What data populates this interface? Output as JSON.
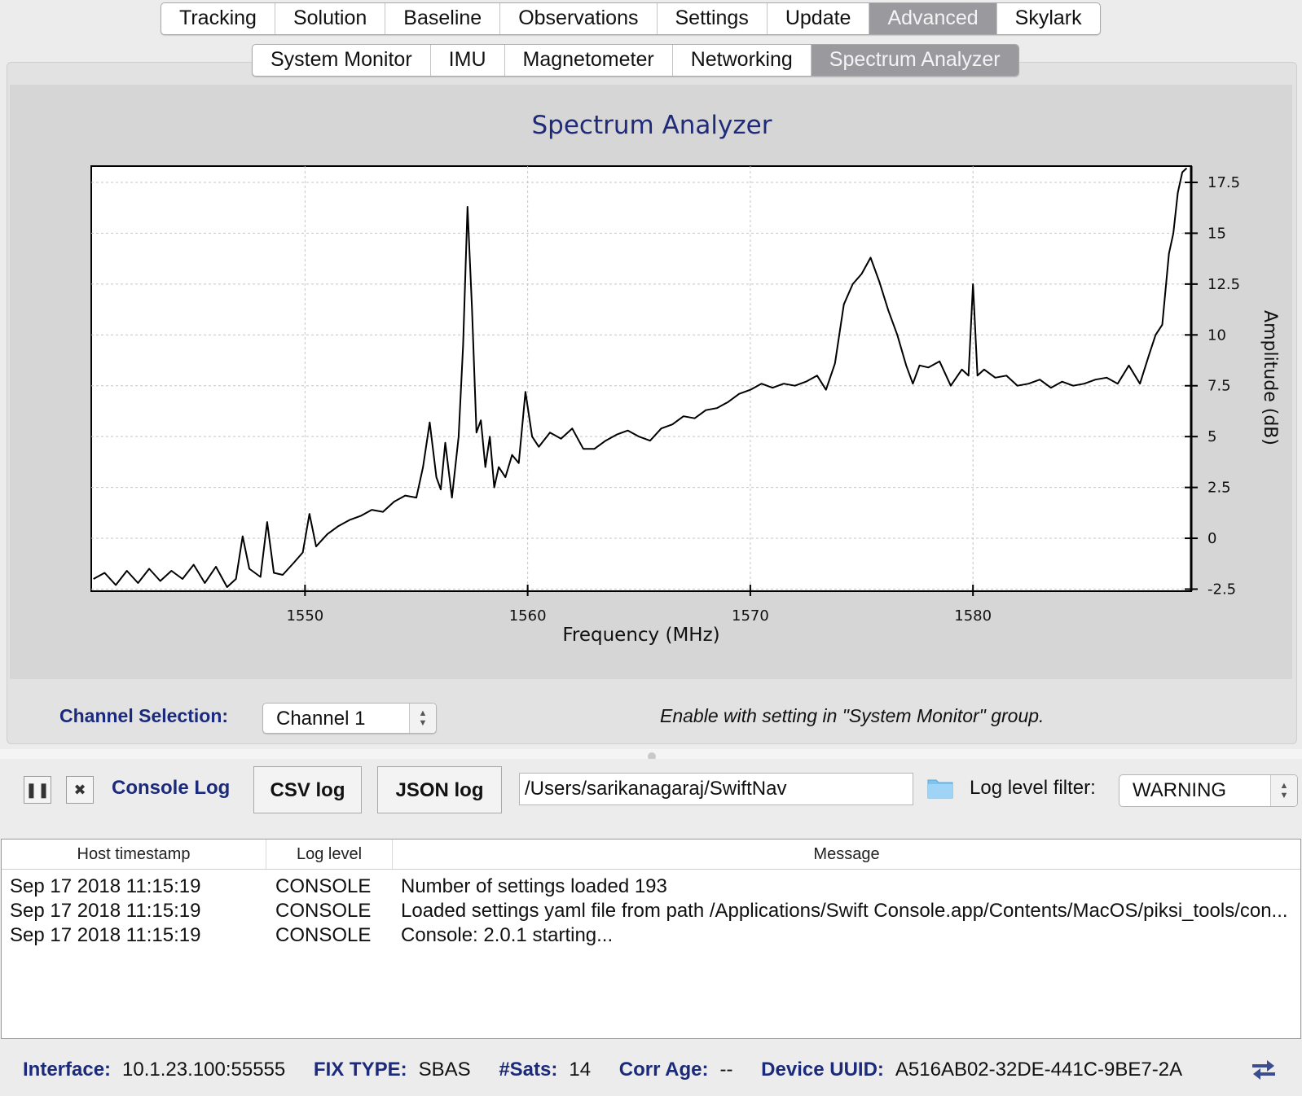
{
  "main_tabs": [
    "Tracking",
    "Solution",
    "Baseline",
    "Observations",
    "Settings",
    "Update",
    "Advanced",
    "Skylark"
  ],
  "main_tab_active": "Advanced",
  "sub_tabs": [
    "System Monitor",
    "IMU",
    "Magnetometer",
    "Networking",
    "Spectrum Analyzer"
  ],
  "sub_tab_active": "Spectrum Analyzer",
  "chart_data": {
    "type": "line",
    "title": "Spectrum Analyzer",
    "xlabel": "Frequency (MHz)",
    "ylabel": "Amplitude (dB)",
    "xlim": [
      1540.4,
      1589.8
    ],
    "ylim": [
      -2.6,
      18.3
    ],
    "x_ticks": [
      1550,
      1560,
      1570,
      1580
    ],
    "x_tick_labels": [
      "1550",
      "1560",
      "1570",
      "1580"
    ],
    "y_ticks": [
      -2.5,
      0,
      2.5,
      5,
      7.5,
      10,
      12.5,
      15,
      17.5
    ],
    "y_tick_labels": [
      "-2.5",
      "0",
      "2.5",
      "5",
      "7.5",
      "10",
      "12.5",
      "15",
      "17.5"
    ],
    "y_axis_side": "right",
    "grid": true,
    "series": [
      {
        "color": "#000000",
        "x": [
          1540.5,
          1541.0,
          1541.5,
          1542.0,
          1542.5,
          1543.0,
          1543.5,
          1544.0,
          1544.5,
          1545.0,
          1545.5,
          1546.0,
          1546.5,
          1546.9,
          1547.2,
          1547.5,
          1548.0,
          1548.3,
          1548.6,
          1549.0,
          1549.5,
          1549.9,
          1550.2,
          1550.5,
          1551.0,
          1551.5,
          1552.0,
          1552.5,
          1553.0,
          1553.5,
          1554.0,
          1554.5,
          1555.0,
          1555.3,
          1555.6,
          1555.9,
          1556.1,
          1556.3,
          1556.6,
          1556.9,
          1557.1,
          1557.3,
          1557.5,
          1557.7,
          1557.9,
          1558.1,
          1558.3,
          1558.5,
          1558.7,
          1559.0,
          1559.3,
          1559.6,
          1559.9,
          1560.2,
          1560.5,
          1561.0,
          1561.5,
          1562.0,
          1562.5,
          1563.0,
          1563.5,
          1564.0,
          1564.5,
          1565.0,
          1565.5,
          1566.0,
          1566.5,
          1567.0,
          1567.5,
          1568.0,
          1568.5,
          1569.0,
          1569.5,
          1570.0,
          1570.5,
          1571.0,
          1571.5,
          1572.0,
          1572.5,
          1573.0,
          1573.4,
          1573.8,
          1574.2,
          1574.6,
          1575.0,
          1575.4,
          1575.8,
          1576.2,
          1576.6,
          1577.0,
          1577.3,
          1577.6,
          1578.0,
          1578.5,
          1579.0,
          1579.5,
          1579.8,
          1580.0,
          1580.2,
          1580.5,
          1581.0,
          1581.5,
          1582.0,
          1582.5,
          1583.0,
          1583.5,
          1584.0,
          1584.5,
          1585.0,
          1585.5,
          1586.0,
          1586.5,
          1587.0,
          1587.5,
          1587.9,
          1588.2,
          1588.5,
          1588.8,
          1589.0,
          1589.2,
          1589.4,
          1589.6
        ],
        "y": [
          -2.0,
          -1.7,
          -2.3,
          -1.6,
          -2.2,
          -1.5,
          -2.1,
          -1.6,
          -2.0,
          -1.3,
          -2.2,
          -1.4,
          -2.4,
          -2.0,
          0.1,
          -1.5,
          -1.9,
          0.8,
          -1.7,
          -1.8,
          -1.2,
          -0.7,
          1.2,
          -0.4,
          0.2,
          0.6,
          0.9,
          1.1,
          1.4,
          1.3,
          1.8,
          2.1,
          2.0,
          3.5,
          5.7,
          3.0,
          2.4,
          4.7,
          2.0,
          5.0,
          9.5,
          16.3,
          11.3,
          5.2,
          5.8,
          3.5,
          5.0,
          2.5,
          3.5,
          3.0,
          4.1,
          3.7,
          7.2,
          5.0,
          4.5,
          5.2,
          4.9,
          5.4,
          4.4,
          4.4,
          4.8,
          5.1,
          5.3,
          5.0,
          4.8,
          5.4,
          5.6,
          6.0,
          5.9,
          6.3,
          6.4,
          6.7,
          7.1,
          7.3,
          7.6,
          7.4,
          7.6,
          7.5,
          7.7,
          8.0,
          7.3,
          8.6,
          11.5,
          12.5,
          13.0,
          13.8,
          12.6,
          11.2,
          10.0,
          8.5,
          7.6,
          8.5,
          8.4,
          8.7,
          7.5,
          8.3,
          8.0,
          12.5,
          8.0,
          8.3,
          7.9,
          8.0,
          7.5,
          7.6,
          7.8,
          7.4,
          7.7,
          7.5,
          7.6,
          7.8,
          7.9,
          7.6,
          8.5,
          7.6,
          9.0,
          10.0,
          10.5,
          14.0,
          15.0,
          17.0,
          18.0,
          18.2
        ]
      }
    ]
  },
  "controls": {
    "channel_label": "Channel Selection:",
    "channel_value": "Channel 1",
    "enable_note": "Enable with setting in \"System Monitor\" group."
  },
  "console": {
    "title": "Console Log",
    "pause_icon": "pause-icon",
    "clear_icon": "close-icon",
    "csv_button": "CSV log",
    "json_button": "JSON log",
    "path_value": "/Users/sarikanagaraj/SwiftNav",
    "folder_icon": "folder-icon",
    "level_label": "Log level filter:",
    "level_value": "WARNING",
    "columns": [
      "Host timestamp",
      "Log level",
      "Message"
    ],
    "rows": [
      {
        "timestamp": "Sep 17 2018 11:15:19",
        "level": "CONSOLE",
        "message": "Number of settings loaded 193"
      },
      {
        "timestamp": "Sep 17 2018 11:15:19",
        "level": "CONSOLE",
        "message": "Loaded settings yaml file from path /Applications/Swift Console.app/Contents/MacOS/piksi_tools/con..."
      },
      {
        "timestamp": "Sep 17 2018 11:15:19",
        "level": "CONSOLE",
        "message": "Console: 2.0.1 starting..."
      }
    ]
  },
  "status": {
    "interface_label": "Interface:",
    "interface_value": "10.1.23.100:55555",
    "fix_label": "FIX TYPE:",
    "fix_value": "SBAS",
    "sats_label": "#Sats:",
    "sats_value": "14",
    "corr_label": "Corr Age:",
    "corr_value": "--",
    "uuid_label": "Device UUID:",
    "uuid_value": "A516AB02-32DE-441C-9BE7-2A",
    "refresh_icon": "refresh-icon"
  },
  "colors": {
    "label_blue": "#1b2a7a",
    "active_tab": "#9a9a9e",
    "plot_bg": "#d6d6d6",
    "title_blue": "#1f2a7a"
  }
}
